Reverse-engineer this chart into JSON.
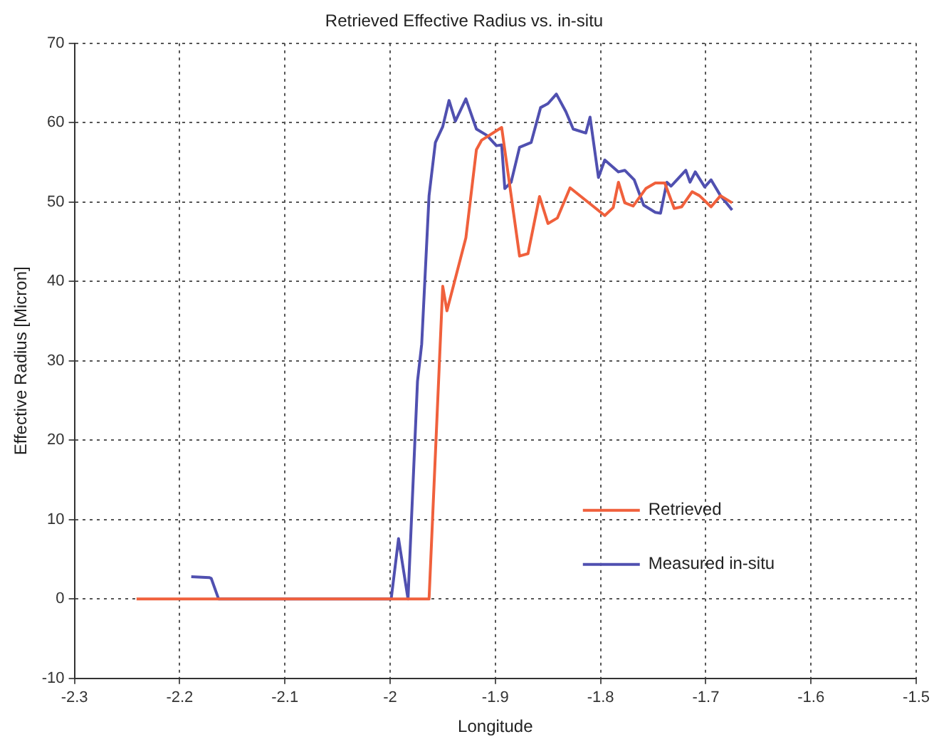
{
  "chart_data": {
    "type": "line",
    "title": "Retrieved Effective Radius vs. in-situ",
    "xlabel": "Longitude",
    "ylabel": "Effective Radius [Micron]",
    "xlim": [
      -2.3,
      -1.5
    ],
    "xticks": [
      -2.3,
      -2.2,
      -2.1,
      -2,
      -1.9,
      -1.8,
      -1.7,
      -1.6,
      -1.5
    ],
    "ylim": [
      -10,
      70
    ],
    "yticks": [
      -10,
      0,
      10,
      20,
      30,
      40,
      50,
      60,
      70
    ],
    "grid": true,
    "legend": "bottom right",
    "line_style": "solid",
    "marker": "none",
    "series": [
      {
        "name": "Retrieved",
        "color": "#f0603c",
        "x": [
          -2.241,
          -1.963,
          -1.95,
          -1.946,
          -1.928,
          -1.918,
          -1.913,
          -1.894,
          -1.877,
          -1.869,
          -1.858,
          -1.85,
          -1.841,
          -1.829,
          -1.796,
          -1.788,
          -1.783,
          -1.777,
          -1.769,
          -1.757,
          -1.748,
          -1.739,
          -1.73,
          -1.723,
          -1.713,
          -1.706,
          -1.695,
          -1.686,
          -1.675
        ],
        "values": [
          0,
          0,
          39.4,
          36.3,
          45.5,
          56.6,
          57.8,
          59.4,
          43.2,
          43.5,
          50.7,
          47.3,
          48,
          51.8,
          48.3,
          49.3,
          52.5,
          49.9,
          49.5,
          51.7,
          52.4,
          52.4,
          49.2,
          49.4,
          51.3,
          50.8,
          49.4,
          50.8,
          49.9
        ]
      },
      {
        "name": "Measured in-situ",
        "color": "#5050b0",
        "x": [
          -2.189,
          -2.172,
          -2.17,
          -2.163,
          -1.999,
          -1.992,
          -1.983,
          -1.974,
          -1.97,
          -1.963,
          -1.957,
          -1.95,
          -1.944,
          -1.938,
          -1.928,
          -1.918,
          -1.908,
          -1.899,
          -1.894,
          -1.891,
          -1.885,
          -1.877,
          -1.866,
          -1.857,
          -1.85,
          -1.842,
          -1.833,
          -1.826,
          -1.814,
          -1.81,
          -1.802,
          -1.796,
          -1.783,
          -1.777,
          -1.768,
          -1.759,
          -1.748,
          -1.743,
          -1.737,
          -1.733,
          -1.719,
          -1.715,
          -1.71,
          -1.701,
          -1.695,
          -1.686,
          -1.675
        ],
        "values": [
          2.8,
          2.7,
          2.6,
          0,
          0,
          7.6,
          0,
          27.4,
          32.1,
          50.8,
          57.5,
          59.5,
          62.8,
          60.2,
          63,
          59.2,
          58.4,
          57.1,
          57.2,
          51.7,
          52.5,
          56.9,
          57.5,
          61.9,
          62.4,
          63.6,
          61.4,
          59.2,
          58.7,
          60.7,
          53.1,
          55.3,
          53.8,
          54,
          52.8,
          49.6,
          48.7,
          48.6,
          52.5,
          52,
          54,
          52.5,
          53.8,
          51.9,
          52.8,
          50.8,
          49
        ]
      }
    ]
  }
}
